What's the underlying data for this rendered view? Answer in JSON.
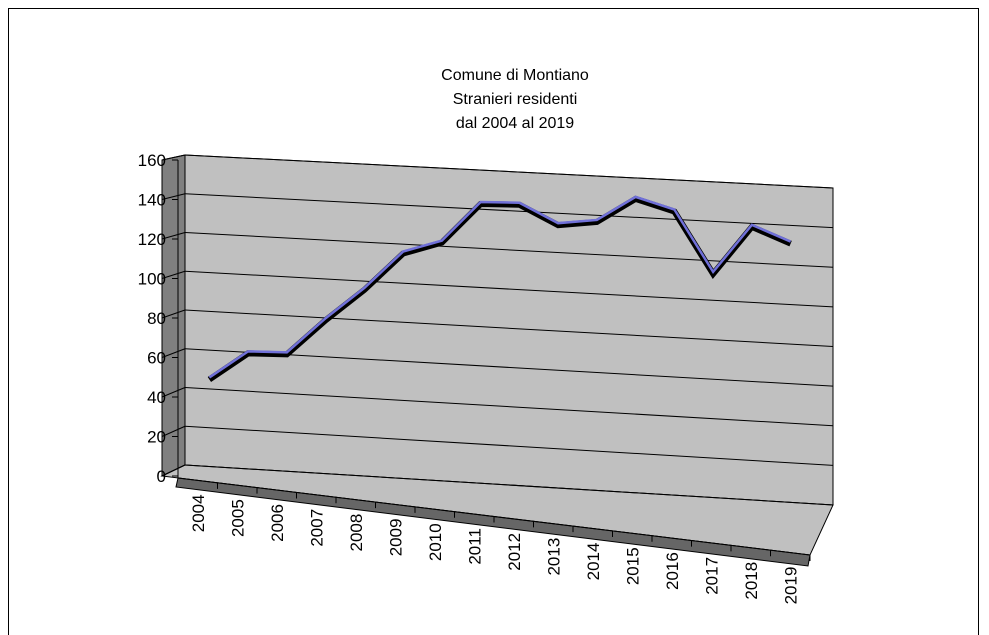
{
  "chart_data": {
    "type": "line",
    "title": [
      "Comune di Montiano",
      "Stranieri residenti",
      "dal 2004 al 2019"
    ],
    "categories": [
      "2004",
      "2005",
      "2006",
      "2007",
      "2008",
      "2009",
      "2010",
      "2011",
      "2012",
      "2013",
      "2014",
      "2015",
      "2016",
      "2017",
      "2018",
      "2019"
    ],
    "series": [
      {
        "name": "Stranieri residenti",
        "color": "#7070d8",
        "values": [
          47,
          61,
          61,
          79,
          95,
          114,
          120,
          140,
          140,
          130,
          132,
          144,
          138,
          107,
          131,
          123
        ]
      }
    ],
    "ylim": [
      0,
      160
    ],
    "yticks": [
      0,
      20,
      40,
      60,
      80,
      100,
      120,
      140,
      160
    ],
    "grid": true
  }
}
